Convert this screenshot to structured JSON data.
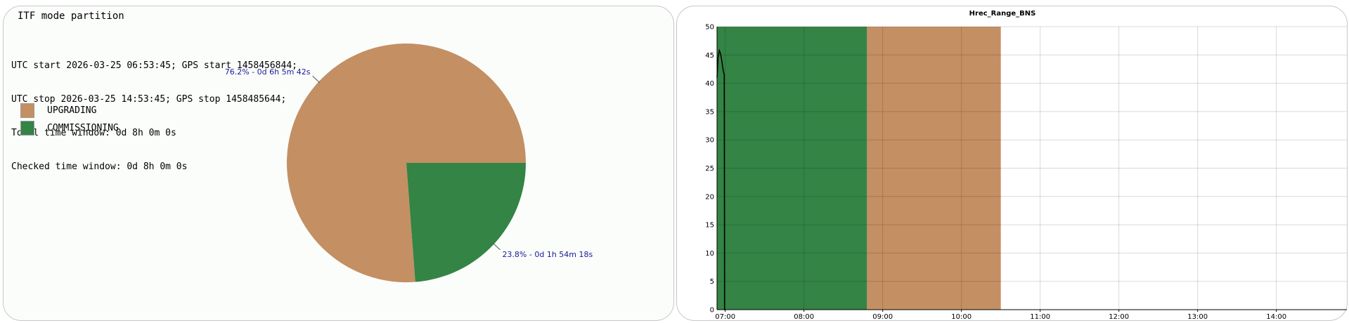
{
  "left_panel": {
    "title": "ITF mode partition",
    "info_lines": [
      "UTC start 2026-03-25 06:53:45; GPS start 1458456844;",
      "UTC stop 2026-03-25 14:53:45; GPS stop 1458485644;",
      "Total time window: 0d 8h 0m 0s",
      "Checked time window: 0d 8h 0m 0s"
    ],
    "legend": [
      {
        "label": "UPGRADING",
        "color": "#c48f63"
      },
      {
        "label": "COMMISSIONING",
        "color": "#338445"
      }
    ]
  },
  "chart_data": [
    {
      "type": "pie",
      "slices": [
        {
          "name": "UPGRADING",
          "percent": 76.2,
          "label": "76.2% - 0d 6h 5m 42s",
          "color": "#c48f63"
        },
        {
          "name": "COMMISSIONING",
          "percent": 23.8,
          "label": "23.8% - 0d 1h 54m 18s",
          "color": "#338445"
        }
      ]
    },
    {
      "type": "line",
      "title": "Hrec_Range_BNS",
      "ylim": [
        0,
        50
      ],
      "yticks": [
        "0",
        "5",
        "10",
        "15",
        "20",
        "25",
        "30",
        "35",
        "40",
        "45",
        "50"
      ],
      "xlim": [
        "06:53:45",
        "14:53:45"
      ],
      "xticks": [
        "07:00",
        "08:00",
        "09:00",
        "10:00",
        "11:00",
        "12:00",
        "13:00",
        "14:00"
      ],
      "grid": true,
      "mode_bands": [
        {
          "mode": "COMMISSIONING",
          "start": "06:53:45",
          "end": "08:48:03",
          "color": "#338445"
        },
        {
          "mode": "UPGRADING",
          "start": "08:48:03",
          "end": "10:30:00",
          "color": "#c48f63"
        }
      ],
      "series": [
        {
          "color": "#000000",
          "x": [
            "06:53:45",
            "06:54:30",
            "06:55:30",
            "06:56:30",
            "06:57:30",
            "06:58:30",
            "06:59:15",
            "06:59:30",
            "07:00:00"
          ],
          "y": [
            41.0,
            44.5,
            45.8,
            45.2,
            43.8,
            42.2,
            41.5,
            0.0,
            0.0
          ]
        }
      ]
    }
  ]
}
